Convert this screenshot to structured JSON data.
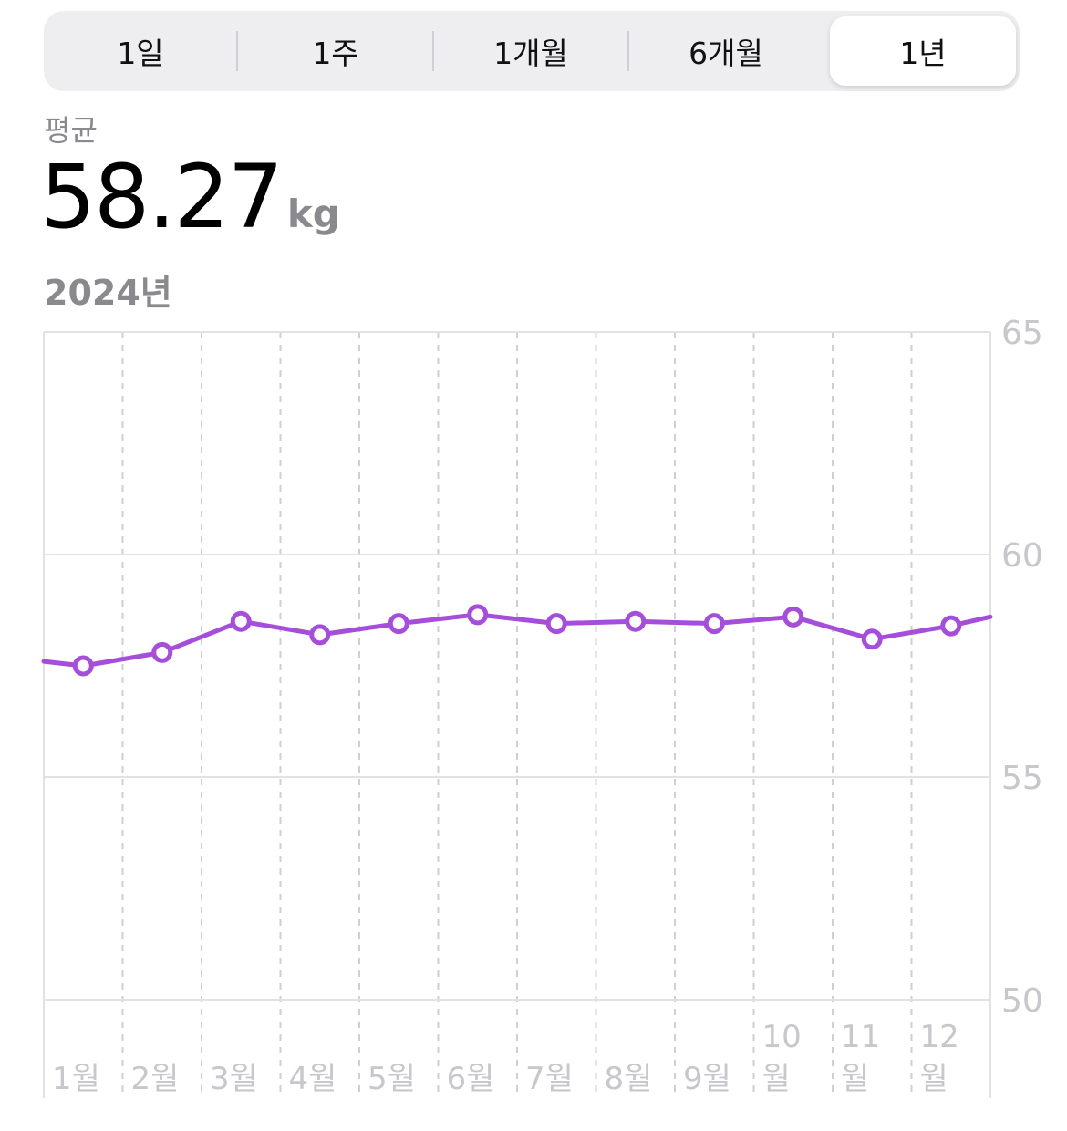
{
  "range_selector": {
    "options": [
      {
        "label": "1일",
        "selected": false
      },
      {
        "label": "1주",
        "selected": false
      },
      {
        "label": "1개월",
        "selected": false
      },
      {
        "label": "6개월",
        "selected": false
      },
      {
        "label": "1년",
        "selected": true
      }
    ]
  },
  "summary": {
    "label": "평균",
    "value": "58.27",
    "unit": "kg",
    "period": "2024년"
  },
  "colors": {
    "series": "#a54ed9",
    "grid": "#e2e2e6",
    "tick_label": "#c7c7cc"
  },
  "chart_data": {
    "type": "line",
    "title": "",
    "xlabel": "",
    "ylabel": "",
    "categories": [
      [
        "1월"
      ],
      [
        "2월"
      ],
      [
        "3월"
      ],
      [
        "4월"
      ],
      [
        "5월"
      ],
      [
        "6월"
      ],
      [
        "7월"
      ],
      [
        "8월"
      ],
      [
        "9월"
      ],
      [
        "10",
        "월"
      ],
      [
        "11",
        "월"
      ],
      [
        "12",
        "월"
      ]
    ],
    "series": [
      {
        "values": [
          57.5,
          57.8,
          58.5,
          58.2,
          58.45,
          58.65,
          58.45,
          58.5,
          58.45,
          58.6,
          58.1,
          58.4
        ]
      }
    ],
    "line_extends_left_to": 57.6,
    "line_extends_right_to": 58.6,
    "ylim": [
      50,
      65
    ],
    "yticks": [
      "65",
      "60",
      "55",
      "50"
    ],
    "y_axis_position": "right",
    "grid": true
  }
}
